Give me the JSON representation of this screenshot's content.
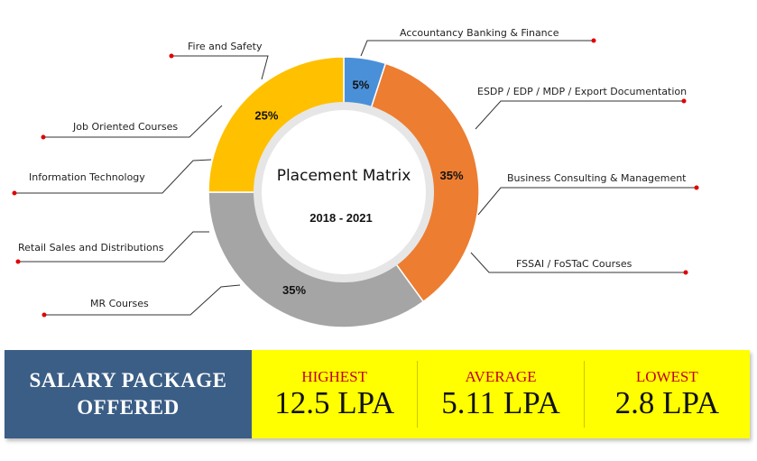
{
  "chart_data": {
    "type": "donut",
    "title": "Placement Matrix",
    "subtitle": "2018 - 2021",
    "slices": [
      {
        "label": "5%",
        "value": 5,
        "color": "#4a90d9"
      },
      {
        "label": "35%",
        "value": 35,
        "color": "#ed7d31"
      },
      {
        "label": "35%",
        "value": 35,
        "color": "#a5a5a5"
      },
      {
        "label": "25%",
        "value": 25,
        "color": "#ffc000"
      }
    ],
    "callouts_right": [
      "Accountancy Banking & Finance",
      "ESDP / EDP / MDP / Export Documentation",
      "Business Consulting & Management",
      "FSSAI / FoSTaC Courses"
    ],
    "callouts_left": [
      "Fire and Safety",
      "Job Oriented Courses",
      "Information Technology",
      "Retail Sales and Distributions",
      "MR Courses"
    ]
  },
  "salary": {
    "title_line1": "SALARY PACKAGE",
    "title_line2": "OFFERED",
    "stats": [
      {
        "label": "HIGHEST",
        "value": "12.5 LPA"
      },
      {
        "label": "AVERAGE",
        "value": "5.11 LPA"
      },
      {
        "label": "LOWEST",
        "value": "2.8 LPA"
      }
    ]
  }
}
